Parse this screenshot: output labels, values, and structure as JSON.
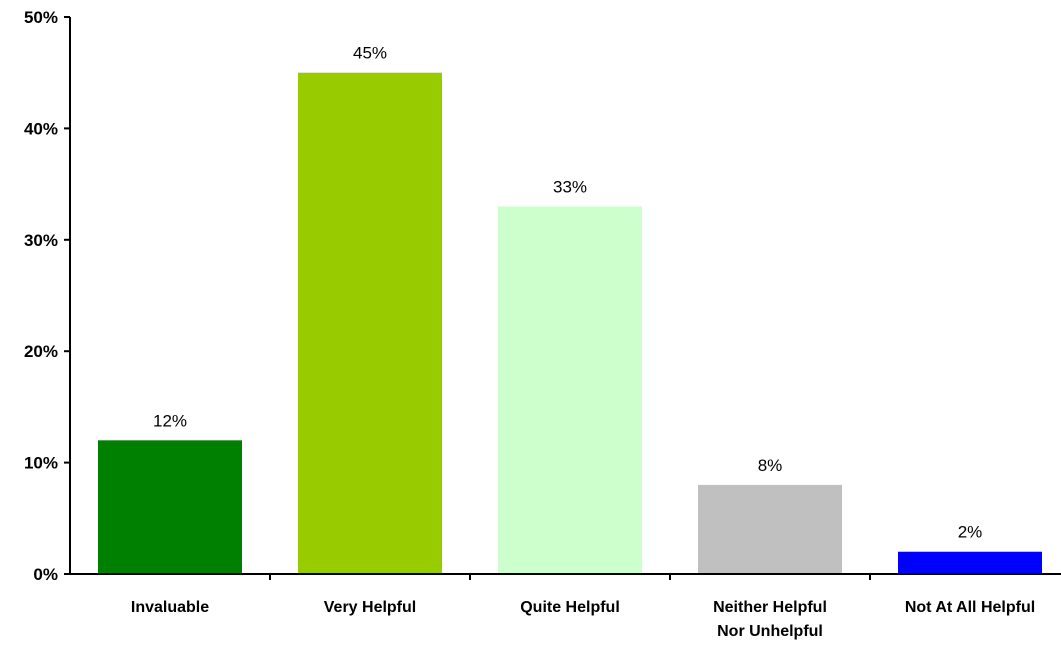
{
  "chart_data": {
    "type": "bar",
    "title": "",
    "xlabel": "",
    "ylabel": "",
    "ylim": [
      0,
      50
    ],
    "y_ticks": [
      "0%",
      "10%",
      "20%",
      "30%",
      "40%",
      "50%"
    ],
    "y_tick_values": [
      0,
      10,
      20,
      30,
      40,
      50
    ],
    "categories": [
      [
        "Invaluable"
      ],
      [
        "Very Helpful"
      ],
      [
        "Quite Helpful"
      ],
      [
        "Neither Helpful",
        "Nor Unhelpful"
      ],
      [
        "Not At All Helpful"
      ]
    ],
    "values": [
      12,
      45,
      33,
      8,
      2
    ],
    "data_labels": [
      "12%",
      "45%",
      "33%",
      "8%",
      "2%"
    ],
    "colors": [
      "#008000",
      "#99cc00",
      "#ccffcc",
      "#c0c0c0",
      "#0000ff"
    ],
    "grid": false,
    "legend": "none"
  }
}
